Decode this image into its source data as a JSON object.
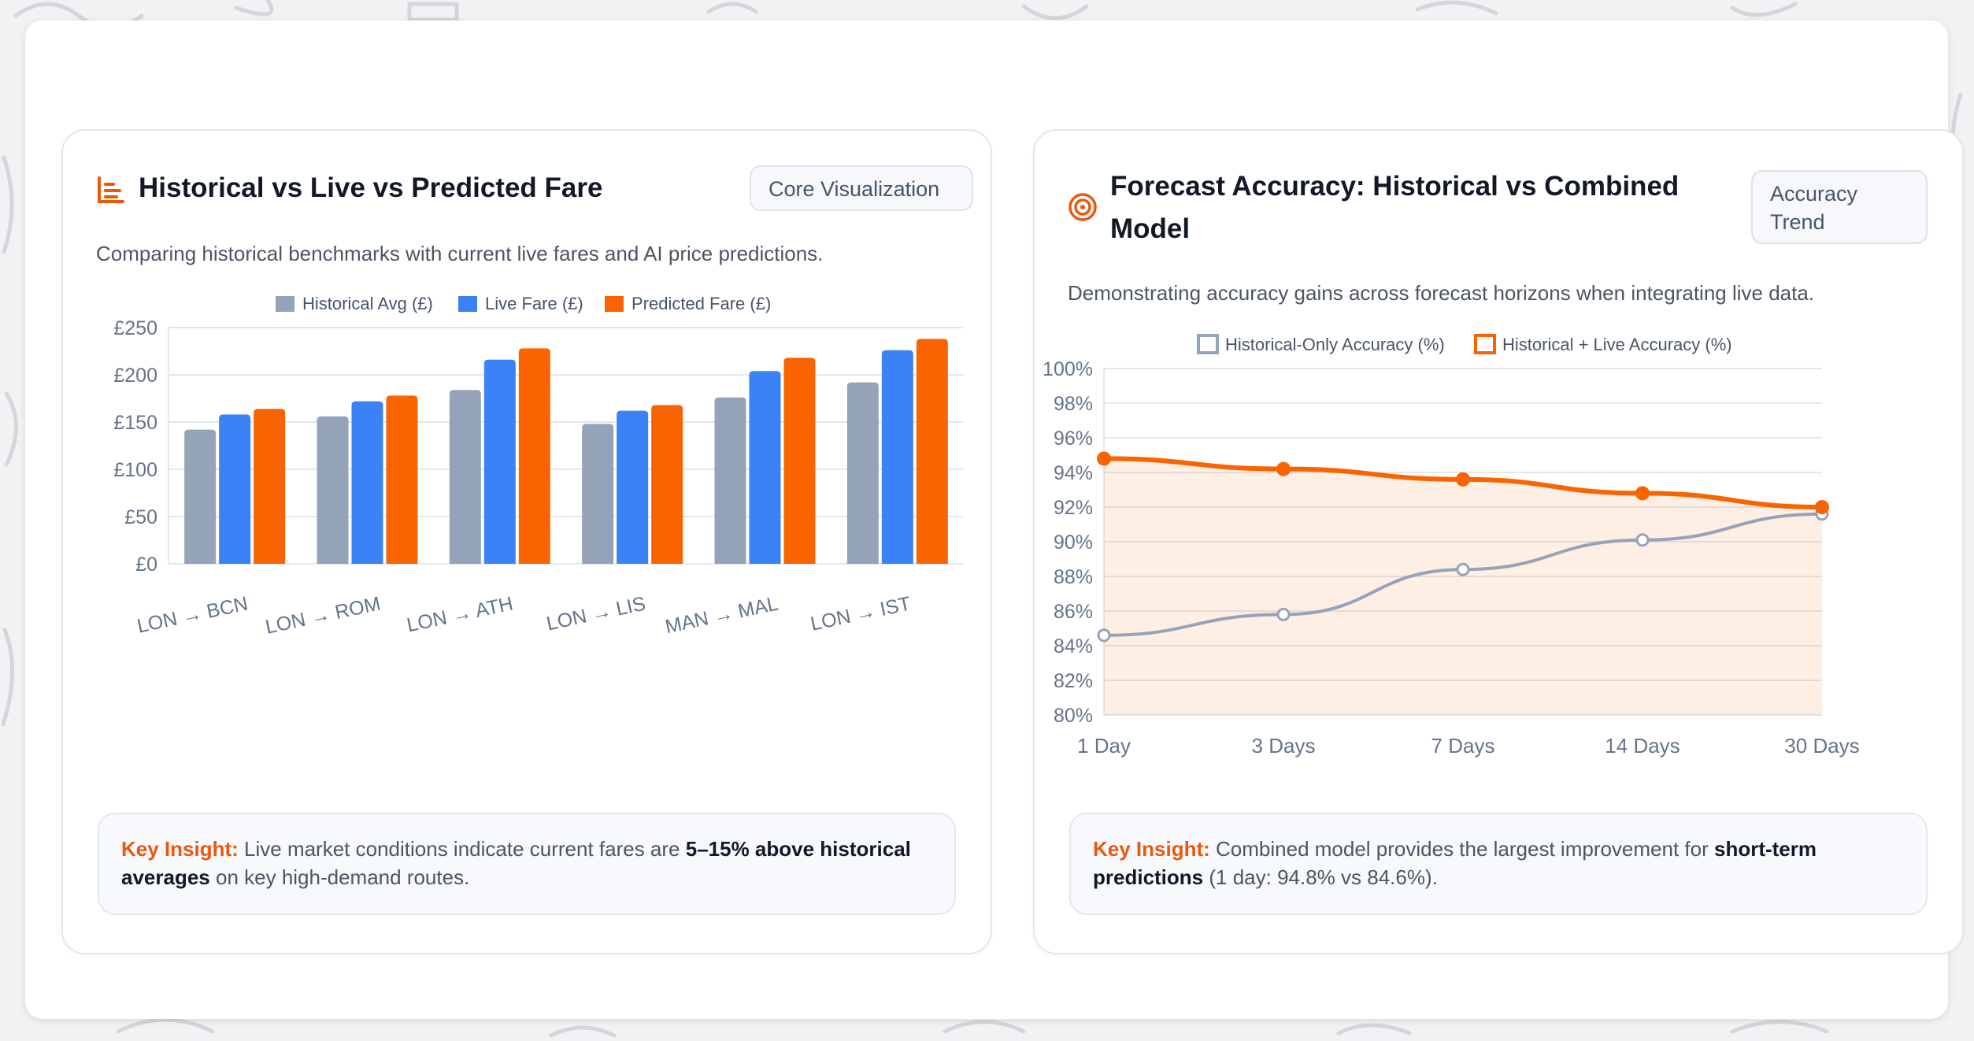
{
  "colors": {
    "historical": "#94a3b8",
    "live": "#3b82f6",
    "predicted": "#fa6400",
    "accent": "#ea580c",
    "grid": "#e5e7eb",
    "tick": "#64748b"
  },
  "left_card": {
    "icon": "bar-chart-icon",
    "title": "Historical vs Live vs Predicted Fare",
    "badge": "Core Visualization",
    "subtitle": "Comparing historical benchmarks with current live fares and AI price predictions.",
    "insight": {
      "label": "Key Insight:",
      "text_before": " Live market conditions indicate current fares are ",
      "bold": "5–15% above historical averages",
      "text_after": " on key high-demand routes."
    }
  },
  "right_card": {
    "icon": "target-icon",
    "title_line1": "Forecast Accuracy: Historical vs Combined",
    "title_line2": "Model",
    "badge_line1": "Accuracy",
    "badge_line2": "Trend",
    "subtitle": "Demonstrating accuracy gains across forecast horizons when integrating live data.",
    "insight": {
      "label": "Key Insight:",
      "text_before": " Combined model provides the largest improvement for ",
      "bold": "short-term predictions",
      "text_after": " (1 day: 94.8% vs 84.6%)."
    }
  },
  "chart_data": [
    {
      "type": "bar",
      "categories": [
        "LON → BCN",
        "LON → ROM",
        "LON → ATH",
        "LON → LIS",
        "MAN → MAL",
        "LON → IST"
      ],
      "series": [
        {
          "name": "Historical Avg (£)",
          "values": [
            142,
            156,
            184,
            148,
            176,
            192
          ]
        },
        {
          "name": "Live Fare (£)",
          "values": [
            158,
            172,
            216,
            162,
            204,
            226
          ]
        },
        {
          "name": "Predicted Fare (£)",
          "values": [
            164,
            178,
            228,
            168,
            218,
            238
          ]
        }
      ],
      "yticks": [
        "£0",
        "£50",
        "£100",
        "£150",
        "£200",
        "£250"
      ],
      "ylim": [
        0,
        250
      ],
      "legend": "top",
      "grid": true
    },
    {
      "type": "line",
      "categories": [
        "1 Day",
        "3 Days",
        "7 Days",
        "14 Days",
        "30 Days"
      ],
      "series": [
        {
          "name": "Historical-Only Accuracy (%)",
          "values": [
            84.6,
            85.8,
            88.4,
            90.1,
            91.6
          ]
        },
        {
          "name": "Historical + Live Accuracy (%)",
          "values": [
            94.8,
            94.2,
            93.6,
            92.8,
            92.0
          ],
          "filled": true
        }
      ],
      "yticks": [
        "80%",
        "82%",
        "84%",
        "86%",
        "88%",
        "90%",
        "92%",
        "94%",
        "96%",
        "98%",
        "100%"
      ],
      "ylim": [
        80,
        100
      ],
      "legend": "top",
      "grid": true
    }
  ]
}
